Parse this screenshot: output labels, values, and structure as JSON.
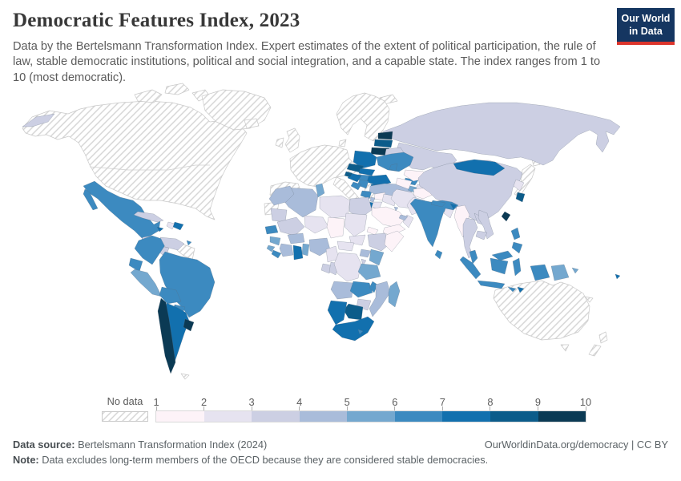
{
  "header": {
    "title": "Democratic Features Index, 2023",
    "subtitle": "Data by the Bertelsmann Transformation Index. Expert estimates of the extent of political participation, the rule of law, stable democratic institutions, political and social integration, and a capable state. The index ranges from 1 to 10 (most democratic).",
    "logo_line1": "Our World",
    "logo_line2": "in Data",
    "logo_bg": "#153661",
    "logo_accent": "#dc352c"
  },
  "legend": {
    "no_data_label": "No data",
    "tick_labels": [
      "1",
      "2",
      "3",
      "4",
      "5",
      "6",
      "7",
      "8",
      "9",
      "10"
    ]
  },
  "footer": {
    "source_label": "Data source:",
    "source_text": "Bertelsmann Transformation Index (2024)",
    "credit": "OurWorldinData.org/democracy | CC BY",
    "note_label": "Note:",
    "note_text": "Data excludes long-term members of the OECD because they are considered stable democracies."
  },
  "chart_data": {
    "type": "choropleth",
    "title": "Democratic Features Index, 2023",
    "source": "Bertelsmann Transformation Index (2024)",
    "scale_range": [
      1,
      10
    ],
    "bins": [
      "1-2",
      "2-3",
      "3-4",
      "4-5",
      "5-6",
      "6-7",
      "7-8",
      "8-9",
      "9-10"
    ],
    "bin_colors": [
      "#fdf3f8",
      "#e6e3f0",
      "#cccfe3",
      "#a9bcda",
      "#74a8cf",
      "#3c8ac0",
      "#1270ae",
      "#0c5c8a",
      "#0b3a54"
    ],
    "no_data_style": "diagonal-hatch",
    "regions": {
      "north-america": {
        "label": "United States, Canada & Alaska",
        "bin": "no-data"
      },
      "greenland": {
        "label": "Greenland",
        "bin": "no-data"
      },
      "arctic-islands": {
        "label": "Canadian Arctic Islands",
        "bin": "no-data"
      },
      "iceland": {
        "label": "Iceland",
        "bin": "no-data"
      },
      "uk": {
        "label": "United Kingdom",
        "bin": "no-data"
      },
      "ireland": {
        "label": "Ireland",
        "bin": "no-data"
      },
      "scandinavia": {
        "label": "Norway, Sweden & Finland",
        "bin": "no-data"
      },
      "denmark": {
        "label": "Denmark",
        "bin": "no-data"
      },
      "svalbard": {
        "label": "Svalbard",
        "bin": "no-data"
      },
      "western-europe": {
        "label": "France, Germany & Central Europe",
        "bin": "no-data"
      },
      "iberia": {
        "label": "Spain & Portugal",
        "bin": "no-data"
      },
      "italy": {
        "label": "Italy",
        "bin": "no-data"
      },
      "greece": {
        "label": "Greece",
        "bin": "no-data"
      },
      "japan": {
        "label": "Japan",
        "bin": "no-data"
      },
      "australia": {
        "label": "Australia",
        "bin": "no-data"
      },
      "new-zealand": {
        "label": "New Zealand",
        "bin": "no-data"
      },
      "new-caledonia": {
        "label": "New Caledonia",
        "bin": "no-data"
      },
      "guyanas": {
        "label": "Guyana, Suriname & French Guiana",
        "bin": "no-data"
      },
      "western-sahara": {
        "label": "Western Sahara",
        "bin": "no-data"
      },
      "falklands": {
        "label": "Falkland Islands",
        "bin": "no-data"
      },
      "russia": {
        "label": "Russia",
        "bin": "3-4"
      },
      "kazakhstan": {
        "label": "Kazakhstan",
        "bin": "3-4"
      },
      "estonia": {
        "label": "Estonia",
        "bin": "9-10"
      },
      "latvia": {
        "label": "Latvia",
        "bin": "8-9"
      },
      "lithuania": {
        "label": "Lithuania",
        "bin": "9-10"
      },
      "belarus": {
        "label": "Belarus",
        "bin": "3-4"
      },
      "poland": {
        "label": "Poland",
        "bin": "7-8"
      },
      "czechia": {
        "label": "Czechia",
        "bin": "8-9"
      },
      "slovakia": {
        "label": "Slovakia",
        "bin": "7-8"
      },
      "hungary": {
        "label": "Hungary",
        "bin": "6-7"
      },
      "ukraine": {
        "label": "Ukraine",
        "bin": "6-7"
      },
      "moldova": {
        "label": "Moldova",
        "bin": "6-7"
      },
      "romania": {
        "label": "Romania",
        "bin": "7-8"
      },
      "bulgaria": {
        "label": "Bulgaria",
        "bin": "7-8"
      },
      "serbia": {
        "label": "Serbia",
        "bin": "6-7"
      },
      "croatia": {
        "label": "Croatia",
        "bin": "7-8"
      },
      "slovenia": {
        "label": "Slovenia",
        "bin": "8-9"
      },
      "bosnia": {
        "label": "Bosnia and Herzegovina",
        "bin": "6-7"
      },
      "albania-macedonia": {
        "label": "Albania & North Macedonia",
        "bin": "6-7"
      },
      "turkey": {
        "label": "Turkey",
        "bin": "4-5"
      },
      "georgia": {
        "label": "Georgia",
        "bin": "6-7"
      },
      "armenia": {
        "label": "Armenia",
        "bin": "5-6"
      },
      "azerbaijan": {
        "label": "Azerbaijan",
        "bin": "2-3"
      },
      "syria": {
        "label": "Syria",
        "bin": "1-2"
      },
      "lebanon": {
        "label": "Lebanon",
        "bin": "4-5"
      },
      "israel": {
        "label": "Israel",
        "bin": "7-8"
      },
      "jordan": {
        "label": "Jordan",
        "bin": "2-3"
      },
      "iraq": {
        "label": "Iraq",
        "bin": "2-3"
      },
      "iran": {
        "label": "Iran",
        "bin": "2-3"
      },
      "afghanistan": {
        "label": "Afghanistan",
        "bin": "1-2"
      },
      "pakistan": {
        "label": "Pakistan",
        "bin": "2-3"
      },
      "turkmenistan": {
        "label": "Turkmenistan",
        "bin": "1-2"
      },
      "uzbekistan": {
        "label": "Uzbekistan",
        "bin": "1-2"
      },
      "kyrgyzstan": {
        "label": "Kyrgyzstan",
        "bin": "4-5"
      },
      "tajikistan": {
        "label": "Tajikistan",
        "bin": "1-2"
      },
      "saudi-arabia": {
        "label": "Saudi Arabia",
        "bin": "1-2"
      },
      "yemen": {
        "label": "Yemen",
        "bin": "1-2"
      },
      "oman": {
        "label": "Oman",
        "bin": "2-3"
      },
      "uae": {
        "label": "United Arab Emirates",
        "bin": "4-5"
      },
      "kuwait": {
        "label": "Kuwait",
        "bin": "4-5"
      },
      "china": {
        "label": "China",
        "bin": "3-4"
      },
      "mongolia": {
        "label": "Mongolia",
        "bin": "7-8"
      },
      "north-korea": {
        "label": "North Korea",
        "bin": "2-3"
      },
      "south-korea": {
        "label": "South Korea",
        "bin": "8-9"
      },
      "taiwan": {
        "label": "Taiwan",
        "bin": "9-10"
      },
      "india": {
        "label": "India",
        "bin": "6-7"
      },
      "nepal": {
        "label": "Nepal",
        "bin": "6-7"
      },
      "bhutan": {
        "label": "Bhutan",
        "bin": "7-8"
      },
      "bangladesh": {
        "label": "Bangladesh",
        "bin": "2-3"
      },
      "sri-lanka": {
        "label": "Sri Lanka",
        "bin": "6-7"
      },
      "myanmar": {
        "label": "Myanmar",
        "bin": "1-2"
      },
      "thailand": {
        "label": "Thailand",
        "bin": "3-4"
      },
      "laos": {
        "label": "Laos",
        "bin": "3-4"
      },
      "vietnam": {
        "label": "Vietnam",
        "bin": "3-4"
      },
      "cambodia": {
        "label": "Cambodia",
        "bin": "3-4"
      },
      "malaysia": {
        "label": "Malaysia",
        "bin": "6-7"
      },
      "indonesia": {
        "label": "Indonesia",
        "bin": "6-7"
      },
      "timor-leste": {
        "label": "Timor-Leste",
        "bin": "7-8"
      },
      "philippines": {
        "label": "Philippines",
        "bin": "6-7"
      },
      "papua-new-guinea": {
        "label": "Papua New Guinea",
        "bin": "5-6"
      },
      "fiji": {
        "label": "Fiji",
        "bin": "7-8"
      },
      "mexico": {
        "label": "Mexico",
        "bin": "6-7"
      },
      "guatemala": {
        "label": "Guatemala",
        "bin": "3-4"
      },
      "honduras": {
        "label": "Honduras",
        "bin": "4-5"
      },
      "el-salvador": {
        "label": "El Salvador",
        "bin": "5-6"
      },
      "nicaragua": {
        "label": "Nicaragua",
        "bin": "3-4"
      },
      "costa-rica": {
        "label": "Costa Rica",
        "bin": "9-10"
      },
      "panama": {
        "label": "Panama",
        "bin": "6-7"
      },
      "cuba": {
        "label": "Cuba",
        "bin": "3-4"
      },
      "jamaica": {
        "label": "Jamaica",
        "bin": "7-8"
      },
      "haiti": {
        "label": "Haiti",
        "bin": "2-3"
      },
      "dominican-republic": {
        "label": "Dominican Republic",
        "bin": "7-8"
      },
      "trinidad": {
        "label": "Trinidad and Tobago",
        "bin": "6-7"
      },
      "colombia": {
        "label": "Colombia",
        "bin": "6-7"
      },
      "venezuela": {
        "label": "Venezuela",
        "bin": "3-4"
      },
      "ecuador": {
        "label": "Ecuador",
        "bin": "6-7"
      },
      "peru": {
        "label": "Peru",
        "bin": "5-6"
      },
      "brazil": {
        "label": "Brazil",
        "bin": "6-7"
      },
      "bolivia": {
        "label": "Bolivia",
        "bin": "6-7"
      },
      "paraguay": {
        "label": "Paraguay",
        "bin": "6-7"
      },
      "chile": {
        "label": "Chile",
        "bin": "9-10"
      },
      "argentina": {
        "label": "Argentina",
        "bin": "7-8"
      },
      "uruguay": {
        "label": "Uruguay",
        "bin": "9-10"
      },
      "morocco": {
        "label": "Morocco",
        "bin": "4-5"
      },
      "algeria": {
        "label": "Algeria",
        "bin": "4-5"
      },
      "tunisia": {
        "label": "Tunisia",
        "bin": "5-6"
      },
      "libya": {
        "label": "Libya",
        "bin": "2-3"
      },
      "egypt": {
        "label": "Egypt",
        "bin": "3-4"
      },
      "mauritania": {
        "label": "Mauritania",
        "bin": "3-4"
      },
      "mali": {
        "label": "Mali",
        "bin": "3-4"
      },
      "niger": {
        "label": "Niger",
        "bin": "2-3"
      },
      "chad": {
        "label": "Chad",
        "bin": "1-2"
      },
      "sudan": {
        "label": "Sudan",
        "bin": "2-3"
      },
      "south-sudan": {
        "label": "South Sudan",
        "bin": "2-3"
      },
      "eritrea": {
        "label": "Eritrea",
        "bin": "1-2"
      },
      "ethiopia": {
        "label": "Ethiopia",
        "bin": "3-4"
      },
      "somalia": {
        "label": "Somalia",
        "bin": "1-2"
      },
      "senegal": {
        "label": "Senegal",
        "bin": "6-7"
      },
      "guinea": {
        "label": "Guinea",
        "bin": "5-6"
      },
      "sierra-leone": {
        "label": "Sierra Leone",
        "bin": "5-6"
      },
      "liberia": {
        "label": "Liberia",
        "bin": "6-7"
      },
      "ivory-coast": {
        "label": "Côte d'Ivoire",
        "bin": "4-5"
      },
      "ghana": {
        "label": "Ghana",
        "bin": "7-8"
      },
      "togo-benin": {
        "label": "Togo & Benin",
        "bin": "5-6"
      },
      "burkina-faso": {
        "label": "Burkina Faso",
        "bin": "4-5"
      },
      "nigeria": {
        "label": "Nigeria",
        "bin": "4-5"
      },
      "cameroon": {
        "label": "Cameroon",
        "bin": "2-3"
      },
      "central-african-republic": {
        "label": "Central African Republic",
        "bin": "2-3"
      },
      "gabon": {
        "label": "Gabon",
        "bin": "3-4"
      },
      "congo": {
        "label": "Congo",
        "bin": "3-4"
      },
      "drc": {
        "label": "Democratic Republic of Congo",
        "bin": "2-3"
      },
      "uganda": {
        "label": "Uganda",
        "bin": "4-5"
      },
      "kenya": {
        "label": "Kenya",
        "bin": "5-6"
      },
      "rwanda-burundi": {
        "label": "Rwanda & Burundi",
        "bin": "3-4"
      },
      "tanzania": {
        "label": "Tanzania",
        "bin": "5-6"
      },
      "angola": {
        "label": "Angola",
        "bin": "4-5"
      },
      "zambia": {
        "label": "Zambia",
        "bin": "6-7"
      },
      "malawi": {
        "label": "Malawi",
        "bin": "6-7"
      },
      "mozambique": {
        "label": "Mozambique",
        "bin": "4-5"
      },
      "zimbabwe": {
        "label": "Zimbabwe",
        "bin": "3-4"
      },
      "botswana": {
        "label": "Botswana",
        "bin": "8-9"
      },
      "namibia": {
        "label": "Namibia",
        "bin": "7-8"
      },
      "south-africa": {
        "label": "South Africa",
        "bin": "7-8"
      },
      "lesotho": {
        "label": "Lesotho",
        "bin": "6-7"
      },
      "madagascar": {
        "label": "Madagascar",
        "bin": "5-6"
      }
    }
  }
}
